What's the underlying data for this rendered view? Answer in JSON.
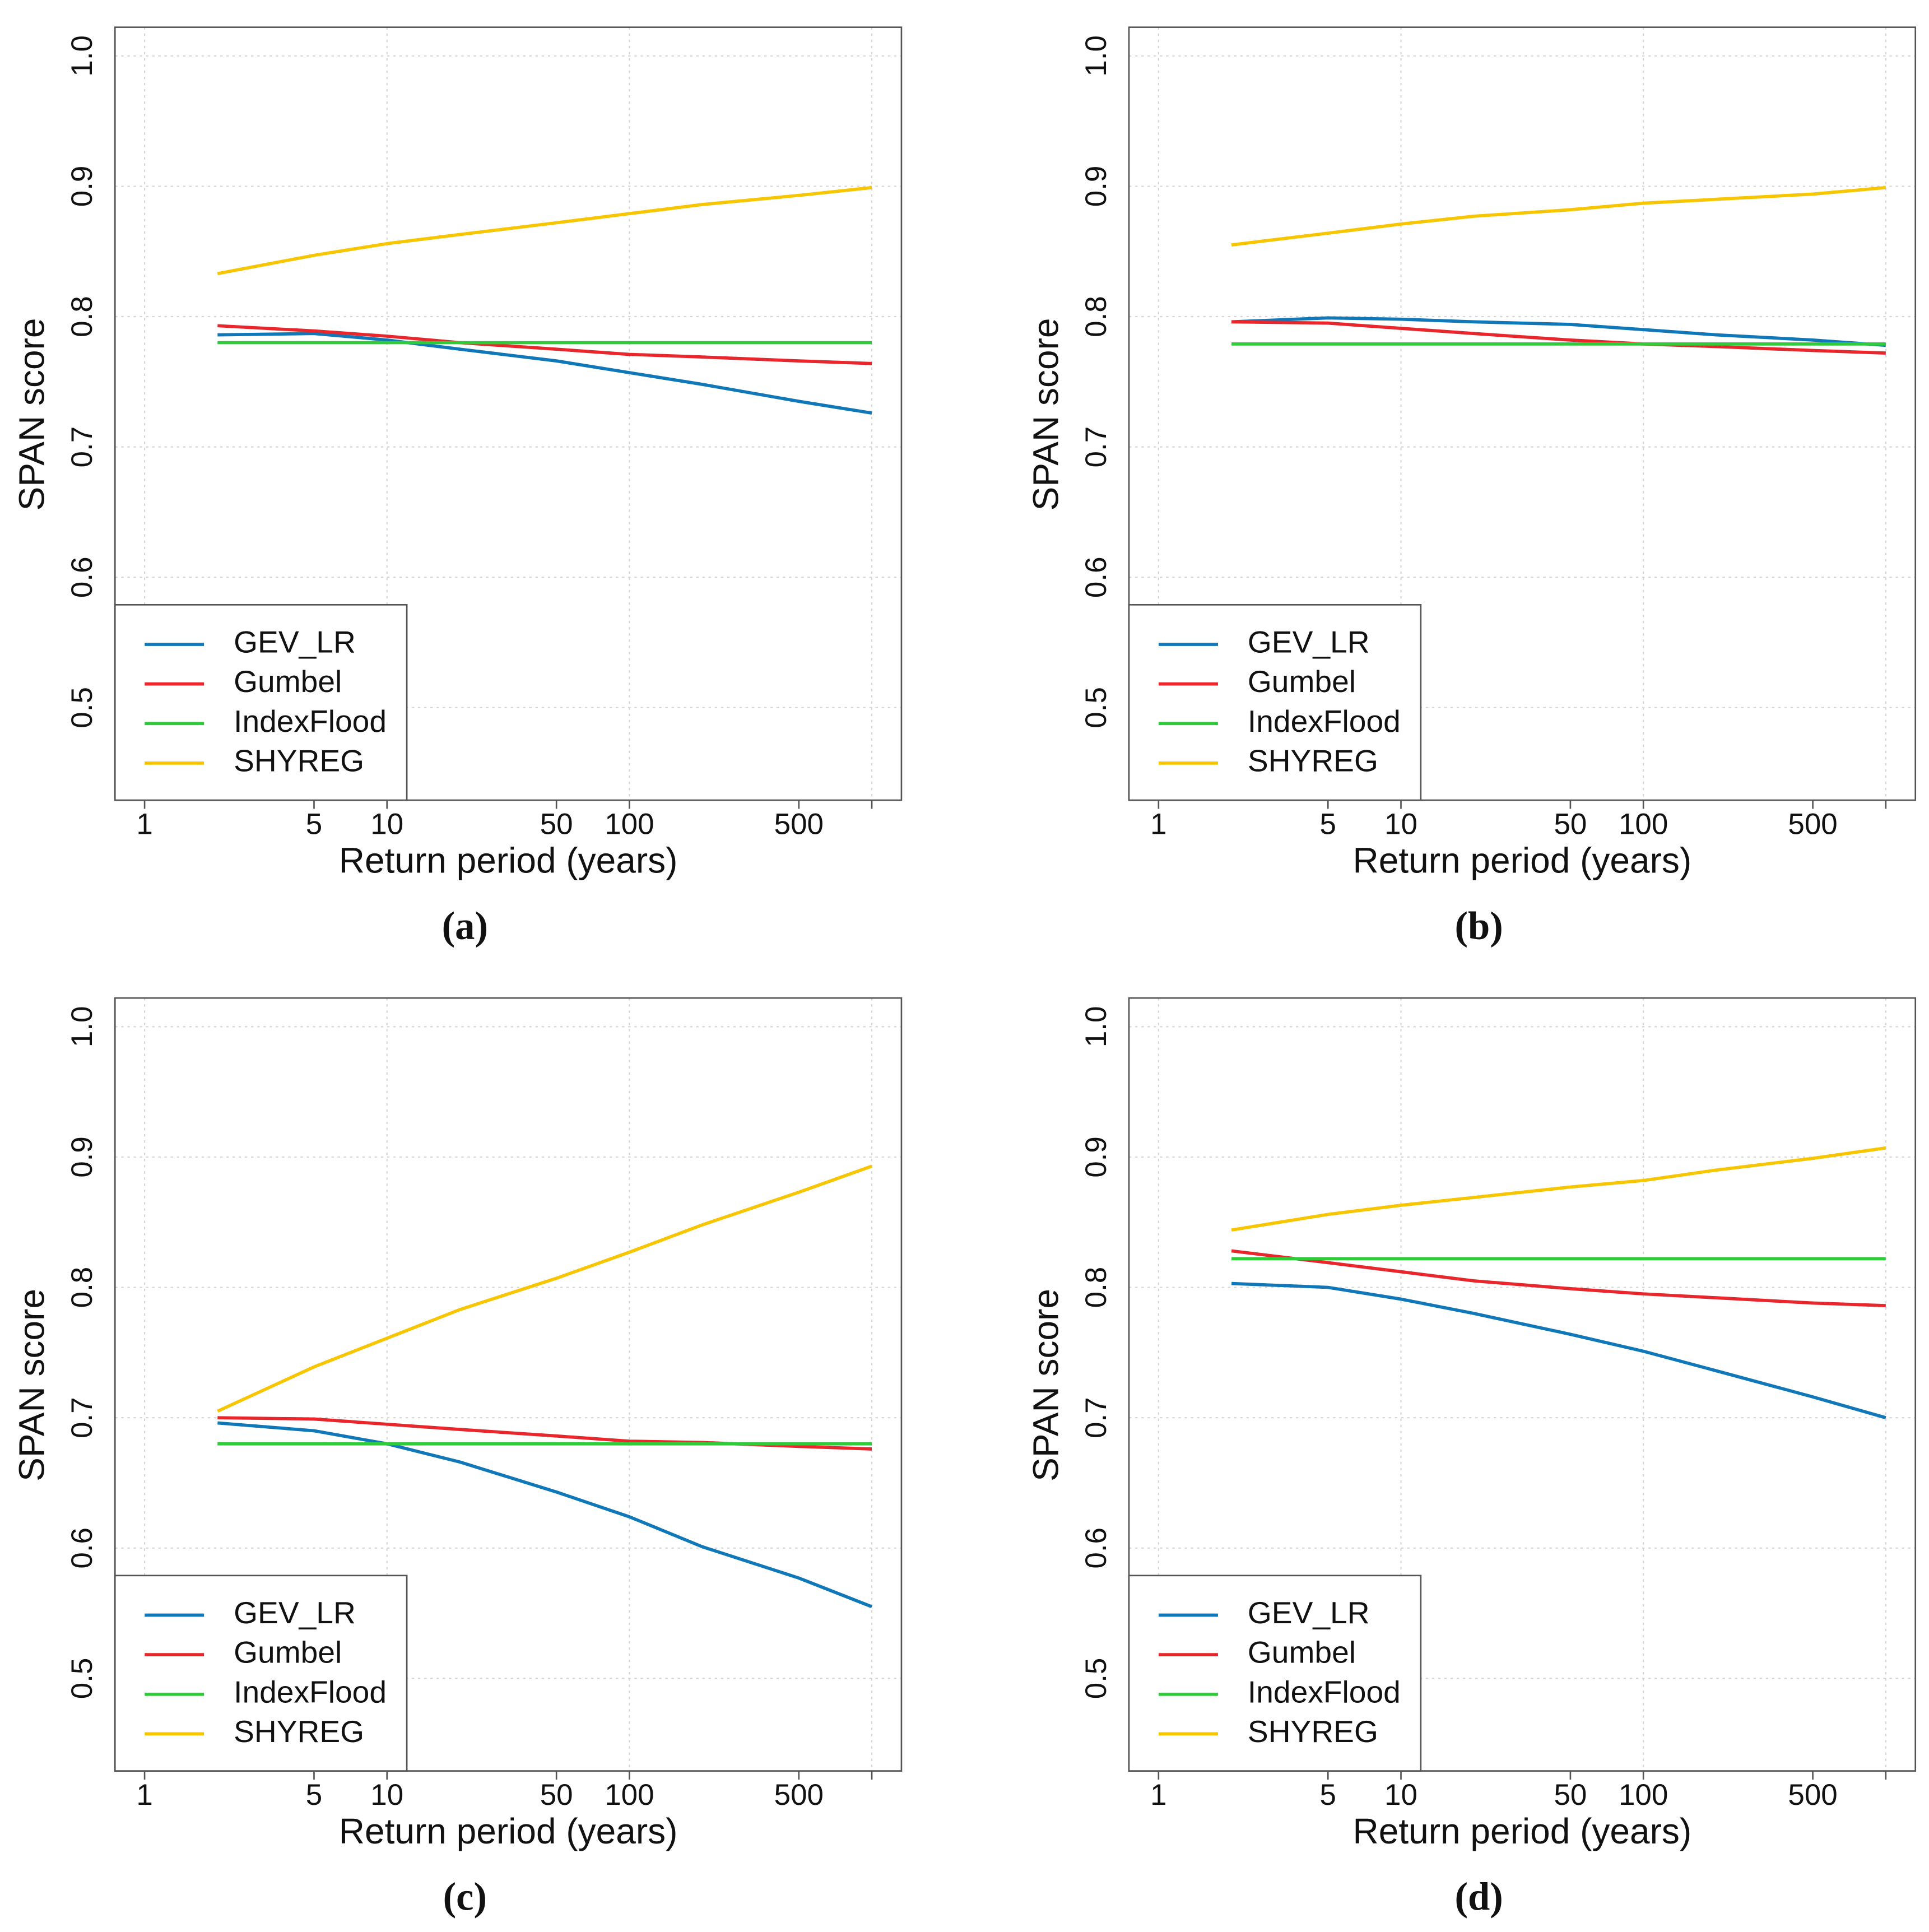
{
  "chart_data": [
    {
      "type": "line",
      "caption": "(a)",
      "xlabel": "Return period (years)",
      "ylabel": "SPAN score",
      "xscale": "log",
      "grid": true,
      "legend": "lower left",
      "x": [
        2,
        5,
        10,
        20,
        50,
        100,
        200,
        500,
        1000
      ],
      "xlim": [
        0.755,
        1325
      ],
      "ylim": [
        0.429,
        1.022
      ],
      "xticks": [
        1,
        5,
        10,
        50,
        100,
        500,
        {
          "value": 1000,
          "label": null
        }
      ],
      "yticks": [
        0.5,
        0.6,
        0.7,
        0.8,
        0.9,
        {
          "value": 1,
          "label": "1.0"
        }
      ],
      "series": [
        {
          "name": "GEV_LR",
          "color": "#1078b8",
          "values": [
            0.786,
            0.787,
            0.782,
            0.775,
            0.766,
            0.757,
            0.748,
            0.735,
            0.726
          ]
        },
        {
          "name": "Gumbel",
          "color": "#e8262b",
          "values": [
            0.793,
            0.789,
            0.785,
            0.78,
            0.775,
            0.771,
            0.769,
            0.766,
            0.764
          ]
        },
        {
          "name": "IndexFlood",
          "color": "#2fcc3a",
          "values": [
            0.78,
            0.78,
            0.78,
            0.78,
            0.78,
            0.78,
            0.78,
            0.78,
            0.78
          ]
        },
        {
          "name": "SHYREG",
          "color": "#f7c600",
          "values": [
            0.833,
            0.847,
            0.856,
            0.863,
            0.872,
            0.879,
            0.886,
            0.893,
            0.899
          ]
        }
      ]
    },
    {
      "type": "line",
      "caption": "(b)",
      "xlabel": "Return period (years)",
      "ylabel": "SPAN score",
      "xscale": "log",
      "grid": true,
      "legend": "lower left",
      "x": [
        2,
        5,
        10,
        20,
        50,
        100,
        200,
        500,
        1000
      ],
      "xlim": [
        0.755,
        1325
      ],
      "ylim": [
        0.429,
        1.022
      ],
      "xticks": [
        1,
        5,
        10,
        50,
        100,
        500,
        {
          "value": 1000,
          "label": null
        }
      ],
      "yticks": [
        0.5,
        0.6,
        0.7,
        0.8,
        0.9,
        {
          "value": 1,
          "label": "1.0"
        }
      ],
      "series": [
        {
          "name": "GEV_LR",
          "color": "#1078b8",
          "values": [
            0.796,
            0.799,
            0.798,
            0.796,
            0.794,
            0.79,
            0.786,
            0.782,
            0.778
          ]
        },
        {
          "name": "Gumbel",
          "color": "#e8262b",
          "values": [
            0.796,
            0.795,
            0.791,
            0.787,
            0.782,
            0.779,
            0.777,
            0.774,
            0.772
          ]
        },
        {
          "name": "IndexFlood",
          "color": "#2fcc3a",
          "values": [
            0.779,
            0.779,
            0.779,
            0.779,
            0.779,
            0.779,
            0.779,
            0.779,
            0.779
          ]
        },
        {
          "name": "SHYREG",
          "color": "#f7c600",
          "values": [
            0.855,
            0.864,
            0.871,
            0.877,
            0.882,
            0.887,
            0.89,
            0.894,
            0.899
          ]
        }
      ]
    },
    {
      "type": "line",
      "caption": "(c)",
      "xlabel": "Return period (years)",
      "ylabel": "SPAN score",
      "xscale": "log",
      "grid": true,
      "legend": "lower left",
      "x": [
        2,
        5,
        10,
        20,
        50,
        100,
        200,
        500,
        1000
      ],
      "xlim": [
        0.755,
        1325
      ],
      "ylim": [
        0.429,
        1.022
      ],
      "xticks": [
        1,
        5,
        10,
        50,
        100,
        500,
        {
          "value": 1000,
          "label": null
        }
      ],
      "yticks": [
        0.5,
        0.6,
        0.7,
        0.8,
        0.9,
        {
          "value": 1,
          "label": "1.0"
        }
      ],
      "series": [
        {
          "name": "GEV_LR",
          "color": "#1078b8",
          "values": [
            0.696,
            0.69,
            0.68,
            0.666,
            0.643,
            0.624,
            0.601,
            0.577,
            0.555
          ]
        },
        {
          "name": "Gumbel",
          "color": "#e8262b",
          "values": [
            0.7,
            0.699,
            0.695,
            0.691,
            0.686,
            0.682,
            0.681,
            0.678,
            0.676
          ]
        },
        {
          "name": "IndexFlood",
          "color": "#2fcc3a",
          "values": [
            0.68,
            0.68,
            0.68,
            0.68,
            0.68,
            0.68,
            0.68,
            0.68,
            0.68
          ]
        },
        {
          "name": "SHYREG",
          "color": "#f7c600",
          "values": [
            0.705,
            0.739,
            0.761,
            0.783,
            0.807,
            0.827,
            0.848,
            0.873,
            0.893
          ]
        }
      ]
    },
    {
      "type": "line",
      "caption": "(d)",
      "xlabel": "Return period (years)",
      "ylabel": "SPAN score",
      "xscale": "log",
      "grid": true,
      "legend": "lower left",
      "x": [
        2,
        5,
        10,
        20,
        50,
        100,
        200,
        500,
        1000
      ],
      "xlim": [
        0.755,
        1325
      ],
      "ylim": [
        0.429,
        1.022
      ],
      "xticks": [
        1,
        5,
        10,
        50,
        100,
        500,
        {
          "value": 1000,
          "label": null
        }
      ],
      "yticks": [
        0.5,
        0.6,
        0.7,
        0.8,
        0.9,
        {
          "value": 1,
          "label": "1.0"
        }
      ],
      "series": [
        {
          "name": "GEV_LR",
          "color": "#1078b8",
          "values": [
            0.803,
            0.8,
            0.791,
            0.78,
            0.764,
            0.751,
            0.736,
            0.716,
            0.7
          ]
        },
        {
          "name": "Gumbel",
          "color": "#e8262b",
          "values": [
            0.828,
            0.819,
            0.812,
            0.805,
            0.799,
            0.795,
            0.792,
            0.788,
            0.786
          ]
        },
        {
          "name": "IndexFlood",
          "color": "#2fcc3a",
          "values": [
            0.822,
            0.822,
            0.822,
            0.822,
            0.822,
            0.822,
            0.822,
            0.822,
            0.822
          ]
        },
        {
          "name": "SHYREG",
          "color": "#f7c600",
          "values": [
            0.844,
            0.856,
            0.863,
            0.869,
            0.877,
            0.882,
            0.89,
            0.899,
            0.907
          ]
        }
      ]
    }
  ]
}
